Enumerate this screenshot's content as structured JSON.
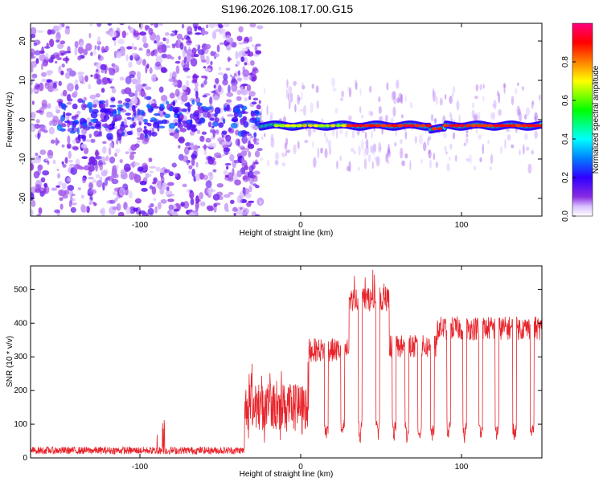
{
  "title": "S196.2026.108.17.00.G15",
  "chart_data": [
    {
      "type": "heatmap",
      "xlabel": "Height of straight line (km)",
      "ylabel": "Frequency (Hz)",
      "xlim": [
        -168,
        150
      ],
      "ylim": [
        -24.5,
        24.5
      ],
      "xticks": [
        -100,
        0,
        100
      ],
      "yticks": [
        -20,
        -10,
        0,
        10,
        20
      ],
      "colorbar": {
        "label": "Normalized spectral amplitude",
        "range": [
          0,
          1
        ],
        "ticks": [
          0.0,
          0.2,
          0.4,
          0.6,
          0.8
        ],
        "tick_labels": [
          "0.0",
          "0.2",
          "0.4",
          "0.6",
          "0.8"
        ],
        "colors": [
          "#ffffff",
          "#c9a8ff",
          "#6a00ff",
          "#0000ff",
          "#00ffff",
          "#00ff00",
          "#ffff00",
          "#ff8000",
          "#ff0000",
          "#ff0080"
        ]
      },
      "description_regions": {
        "scatter_noise_x": [
          -168,
          -42
        ],
        "transition_x": [
          -42,
          -25
        ],
        "narrow_band_x": [
          -25,
          150
        ],
        "narrow_band_frequency_hz": -1.5
      }
    },
    {
      "type": "line",
      "xlabel": "Height of straight line (km)",
      "ylabel": "SNR (10 * v/v)",
      "xlim": [
        -168,
        150
      ],
      "ylim": [
        0,
        570
      ],
      "xticks": [
        -100,
        0,
        100
      ],
      "yticks": [
        0,
        100,
        200,
        300,
        400,
        500
      ],
      "color": "#e8232a",
      "segments": [
        {
          "x": [
            -168,
            -35
          ],
          "level": 22,
          "note": "noise floor with occasional spikes up to ~120 near -85"
        },
        {
          "x": [
            -35,
            5
          ],
          "level": 150,
          "note": "rising, strongly fluctuating"
        },
        {
          "x": [
            5,
            30
          ],
          "level": 320
        },
        {
          "x": [
            30,
            55
          ],
          "level": 470,
          "note": "peak region, max ~565 near 35"
        },
        {
          "x": [
            55,
            85
          ],
          "level": 330
        },
        {
          "x": [
            85,
            150
          ],
          "level": 385
        }
      ],
      "dips_x": [
        16,
        26,
        37,
        48,
        58,
        66,
        74,
        82,
        92,
        102,
        112,
        122,
        133,
        144
      ],
      "dip_min": 40
    }
  ]
}
